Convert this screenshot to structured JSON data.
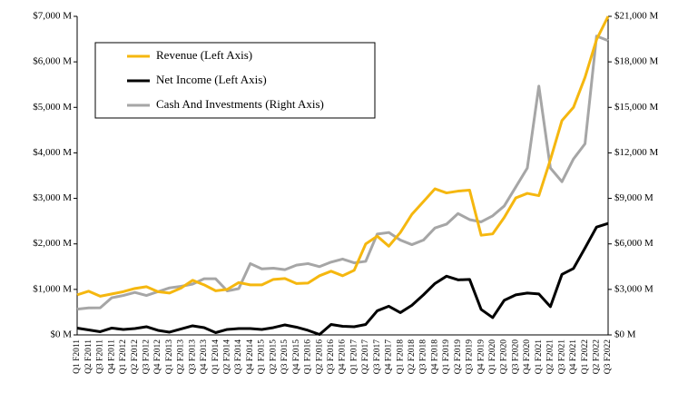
{
  "chart_data": {
    "type": "line",
    "categories": [
      "Q1 F2011",
      "Q2 F2011",
      "Q3 F2011",
      "Q4 F2011",
      "Q1 F2012",
      "Q2 F2012",
      "Q3 F2012",
      "Q4 F2012",
      "Q1 F2013",
      "Q2 F2013",
      "Q3 F2013",
      "Q4 F2013",
      "Q1 F2014",
      "Q2 F2014",
      "Q3 F2014",
      "Q4 F2014",
      "Q1 F2015",
      "Q2 F2015",
      "Q3 F2015",
      "Q4 F2015",
      "Q1 F2016",
      "Q2 F2016",
      "Q3 F2016",
      "Q4 F2016",
      "Q1 F2017",
      "Q2 F2017",
      "Q3 F2017",
      "Q4 F2017",
      "Q1 F2018",
      "Q2 F2018",
      "Q3 F2018",
      "Q4 F2018",
      "Q1 F2019",
      "Q2 F2019",
      "Q3 F2019",
      "Q4 F2019",
      "Q1 F2020",
      "Q2 F2020",
      "Q3 F2020",
      "Q4 F2020",
      "Q1 F2021",
      "Q2 F2021",
      "Q3 F2021",
      "Q4 F2021",
      "Q1 F2022",
      "Q2 F2022",
      "Q3 F2022"
    ],
    "series": [
      {
        "name": "Revenue (Left Axis)",
        "color": "#f5b70f",
        "values": [
          880,
          960,
          850,
          900,
          950,
          1020,
          1060,
          950,
          920,
          1030,
          1200,
          1100,
          970,
          1000,
          1150,
          1100,
          1100,
          1220,
          1240,
          1130,
          1140,
          1300,
          1400,
          1300,
          1420,
          2000,
          2170,
          1950,
          2250,
          2650,
          2930,
          3210,
          3120,
          3160,
          3180,
          2190,
          2220,
          2580,
          3010,
          3110,
          3060,
          3850,
          4710,
          5000,
          5660,
          6490,
          7000
        ]
      },
      {
        "name": "Net Income (Left Axis)",
        "color": "#000000",
        "values": [
          150,
          110,
          70,
          150,
          120,
          140,
          180,
          100,
          60,
          130,
          200,
          160,
          50,
          120,
          140,
          140,
          120,
          160,
          220,
          170,
          100,
          10,
          230,
          190,
          180,
          230,
          530,
          630,
          490,
          650,
          880,
          1130,
          1290,
          1210,
          1220,
          560,
          380,
          760,
          880,
          920,
          900,
          620,
          1330,
          1460,
          1910,
          2370,
          2450
        ]
      },
      {
        "name": "Cash And Investments (Right Axis)",
        "color": "#a6a6a6",
        "axis": "y2",
        "values": [
          1700,
          1780,
          1790,
          2450,
          2600,
          2800,
          2600,
          2850,
          3100,
          3200,
          3350,
          3700,
          3700,
          2900,
          3050,
          4700,
          4350,
          4400,
          4300,
          4600,
          4700,
          4500,
          4800,
          5000,
          4750,
          4850,
          6650,
          6750,
          6250,
          5950,
          6250,
          7050,
          7300,
          8000,
          7600,
          7450,
          7850,
          8500,
          9750,
          11000,
          16400,
          11000,
          10100,
          11600,
          12600,
          19700,
          19400
        ]
      }
    ],
    "ylim": [
      0,
      7000
    ],
    "yticks": [
      {
        "value": 0,
        "label": "$0 M"
      },
      {
        "value": 1000,
        "label": "$1,000 M"
      },
      {
        "value": 2000,
        "label": "$2,000 M"
      },
      {
        "value": 3000,
        "label": "$3,000 M"
      },
      {
        "value": 4000,
        "label": "$4,000 M"
      },
      {
        "value": 5000,
        "label": "$5,000 M"
      },
      {
        "value": 6000,
        "label": "$6,000 M"
      },
      {
        "value": 7000,
        "label": "$7,000 M"
      }
    ],
    "y2lim": [
      0,
      21000
    ],
    "y2ticks": [
      {
        "value": 0,
        "label": "$0 M"
      },
      {
        "value": 3000,
        "label": "$3,000 M"
      },
      {
        "value": 6000,
        "label": "$6,000 M"
      },
      {
        "value": 9000,
        "label": "$9,000 M"
      },
      {
        "value": 12000,
        "label": "$12,000 M"
      },
      {
        "value": 15000,
        "label": "$15,000 M"
      },
      {
        "value": 18000,
        "label": "$18,000 M"
      },
      {
        "value": 21000,
        "label": "$21,000 M"
      }
    ],
    "grid": false
  }
}
